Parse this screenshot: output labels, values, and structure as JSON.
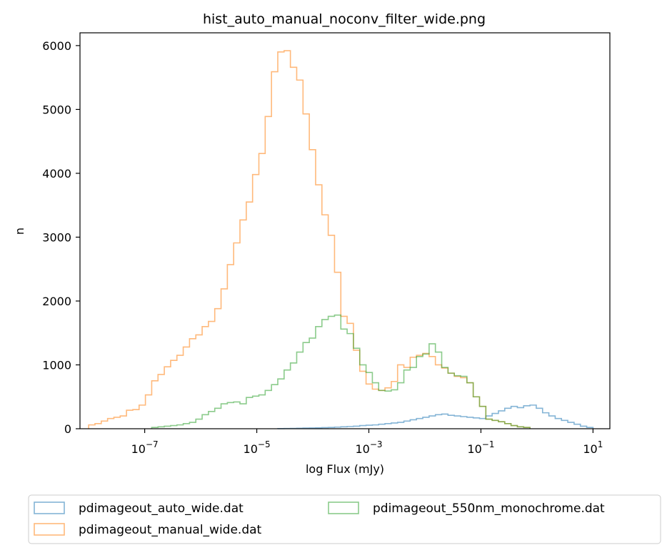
{
  "chart_data": {
    "type": "histogram-step",
    "title": "hist_auto_manual_noconv_filter_wide.png",
    "xlabel": "log Flux (mJy)",
    "ylabel": "n",
    "xscale": "log",
    "xlim": [
      7e-09,
      20
    ],
    "ylim": [
      0,
      6200
    ],
    "xticks": [
      {
        "value": 1e-07,
        "base": "10",
        "exp": "−7"
      },
      {
        "value": 1e-05,
        "base": "10",
        "exp": "−5"
      },
      {
        "value": 0.001,
        "base": "10",
        "exp": "−3"
      },
      {
        "value": 0.1,
        "base": "10",
        "exp": "−1"
      },
      {
        "value": 10,
        "base": "10",
        "exp": "1"
      }
    ],
    "yticks": [
      {
        "value": 0,
        "label": "0"
      },
      {
        "value": 1000,
        "label": "1000"
      },
      {
        "value": 2000,
        "label": "2000"
      },
      {
        "value": 3000,
        "label": "3000"
      },
      {
        "value": 4000,
        "label": "4000"
      },
      {
        "value": 5000,
        "label": "5000"
      },
      {
        "value": 6000,
        "label": "6000"
      }
    ],
    "bins": {
      "log10_start": -8,
      "log10_end": 1,
      "count": 80
    },
    "grid": false,
    "legend_position": "below-chart",
    "series": [
      {
        "name": "pdimageout_auto_wide.dat",
        "color": "#1f77b4",
        "counts": [
          0,
          0,
          0,
          0,
          0,
          0,
          0,
          0,
          0,
          0,
          0,
          0,
          0,
          0,
          0,
          0,
          0,
          0,
          0,
          0,
          0,
          0,
          0,
          0,
          0,
          0,
          0,
          0,
          0,
          0,
          2,
          3,
          5,
          8,
          10,
          12,
          15,
          18,
          20,
          25,
          30,
          35,
          40,
          50,
          55,
          60,
          70,
          80,
          90,
          100,
          120,
          140,
          160,
          180,
          200,
          220,
          230,
          210,
          200,
          190,
          180,
          170,
          160,
          200,
          240,
          280,
          320,
          350,
          330,
          360,
          370,
          320,
          250,
          200,
          160,
          130,
          100,
          70,
          40,
          20
        ]
      },
      {
        "name": "pdimageout_manual_wide.dat",
        "color": "#ff7f0e",
        "counts": [
          60,
          80,
          120,
          160,
          180,
          200,
          290,
          300,
          370,
          530,
          750,
          850,
          970,
          1070,
          1150,
          1280,
          1410,
          1470,
          1600,
          1680,
          1880,
          2190,
          2570,
          2910,
          3270,
          3550,
          3980,
          4310,
          4890,
          5590,
          5900,
          5920,
          5660,
          5460,
          4930,
          4370,
          3820,
          3350,
          3030,
          2450,
          1760,
          1650,
          1230,
          900,
          700,
          620,
          600,
          640,
          740,
          1000,
          960,
          1120,
          1150,
          1180,
          1130,
          1000,
          950,
          870,
          820,
          800,
          720,
          500,
          350,
          150,
          130,
          110,
          80,
          50,
          30,
          20,
          0,
          0,
          0,
          0,
          0,
          0,
          0,
          0,
          0,
          0
        ]
      },
      {
        "name": "pdimageout_550nm_monochrome.dat",
        "color": "#2ca02c",
        "counts": [
          0,
          0,
          0,
          0,
          0,
          0,
          0,
          0,
          0,
          0,
          20,
          30,
          40,
          50,
          60,
          80,
          100,
          150,
          220,
          270,
          320,
          390,
          410,
          420,
          390,
          490,
          510,
          530,
          600,
          690,
          780,
          920,
          1030,
          1200,
          1350,
          1420,
          1600,
          1710,
          1760,
          1780,
          1560,
          1490,
          1260,
          1000,
          880,
          720,
          600,
          590,
          610,
          720,
          920,
          960,
          1130,
          1170,
          1330,
          1200,
          960,
          870,
          830,
          820,
          720,
          500,
          350,
          150,
          130,
          110,
          80,
          50,
          30,
          20,
          0,
          0,
          0,
          0,
          0,
          0,
          0,
          0,
          0,
          0
        ]
      }
    ]
  }
}
